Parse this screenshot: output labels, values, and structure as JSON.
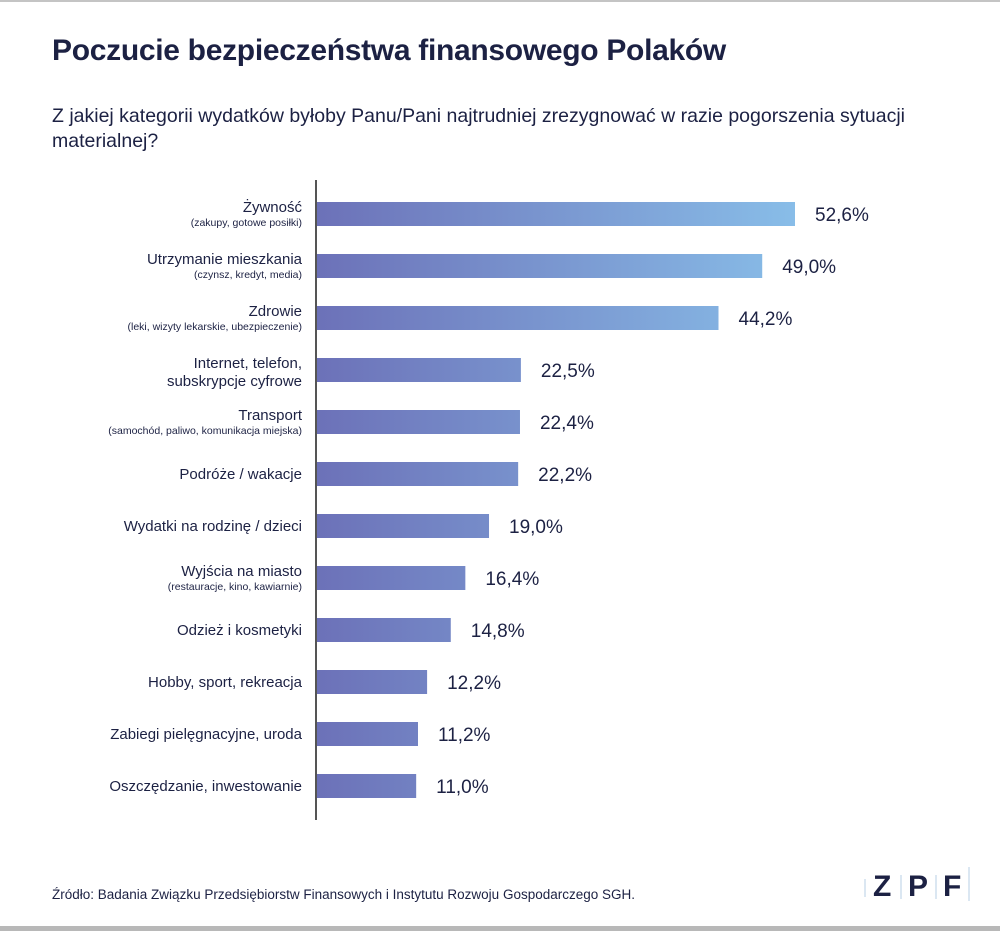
{
  "header": {
    "title": "Poczucie bezpieczeństwa finansowego Polaków"
  },
  "footer": {
    "source": "Źródło: Badania Związku Przedsiębiorstw Finansowych i Instytutu Rozwoju Gospodarczego SGH.",
    "logo": "ZPF"
  },
  "chart_data": {
    "type": "bar",
    "orientation": "horizontal",
    "title": "Z jakiej kategorii wydatków byłoby Panu/Pani najtrudniej zrezygnować w razie pogorszenia sytuacji materialnej?",
    "categories": [
      "Żywność",
      "Utrzymanie mieszkania",
      "Zdrowie",
      "Internet, telefon,",
      "Transport",
      "Podróże / wakacje",
      "Wydatki na rodzinę / dzieci",
      "Wyjścia na miasto",
      "Odzież i kosmetyki",
      "Hobby, sport, rekreacja",
      "Zabiegi pielęgnacyjne, uroda",
      "Oszczędzanie, inwestowanie"
    ],
    "subcategories": [
      "(zakupy, gotowe posiłki)",
      "(czynsz, kredyt, media)",
      "(leki, wizyty lekarskie, ubezpieczenie)",
      "subskrypcje cyfrowe",
      "(samochód, paliwo, komunikacja miejska)",
      "",
      "",
      "(restauracje, kino, kawiarnie)",
      "",
      "",
      "",
      ""
    ],
    "values": [
      52.6,
      49.0,
      44.2,
      22.5,
      22.4,
      22.2,
      19.0,
      16.4,
      14.8,
      12.2,
      11.2,
      11.0
    ],
    "labels": [
      "52,6%",
      "49,0%",
      "44,2%",
      "22,5%",
      "22,4%",
      "22,2%",
      "19,0%",
      "16,4%",
      "14,8%",
      "12,2%",
      "11,2%",
      "11,0%"
    ],
    "xlim": [
      0,
      55
    ],
    "grid": false,
    "colors": {
      "start": "#6c71b8",
      "end": "#88bde8",
      "text": "#1c2143",
      "axis": "#555555"
    }
  }
}
